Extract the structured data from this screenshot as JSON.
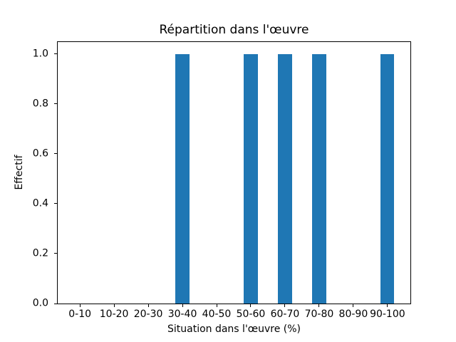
{
  "chart_data": {
    "type": "bar",
    "title": "Répartition dans l'œuvre",
    "xlabel": "Situation dans l'œuvre (%)",
    "ylabel": "Effectif",
    "categories": [
      "0-10",
      "10-20",
      "20-30",
      "30-40",
      "40-50",
      "50-60",
      "60-70",
      "70-80",
      "80-90",
      "90-100"
    ],
    "values": [
      0,
      0,
      0,
      1,
      0,
      1,
      1,
      1,
      0,
      1
    ],
    "ytick_labels": [
      "0.0",
      "0.2",
      "0.4",
      "0.6",
      "0.8",
      "1.0"
    ],
    "ytick_values": [
      0.0,
      0.2,
      0.4,
      0.6,
      0.8,
      1.0
    ],
    "xlim": [
      -0.67,
      9.67
    ],
    "ylim": [
      0,
      1.05
    ],
    "bar_width_units": 0.4,
    "bar_color": "#1f77b4",
    "spine_color": "#000000",
    "text_color": "#000000",
    "background_color": "#ffffff",
    "grid": false,
    "legend": "none"
  }
}
